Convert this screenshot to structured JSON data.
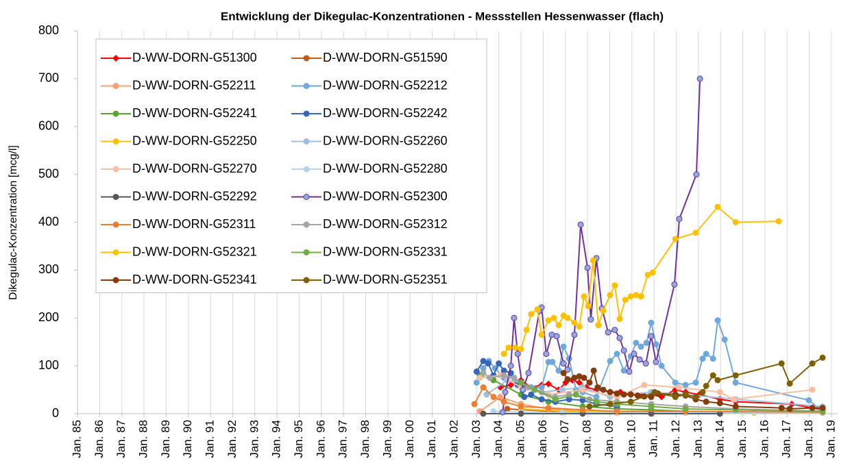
{
  "chart_data": {
    "type": "line",
    "title": "Entwicklung der Dikegulac-Konzentrationen  - Messstellen Hessenwasser (flach)",
    "y_label": "Dikegulac-Konzentration [mcg/l]",
    "xlim": [
      1985,
      2019.28
    ],
    "ylim": [
      0,
      800
    ],
    "yticks": [
      0,
      100,
      200,
      300,
      400,
      500,
      600,
      700,
      800
    ],
    "xticks": [
      {
        "value": 1985,
        "label": "Jan. 85"
      },
      {
        "value": 1986,
        "label": "Jan. 86"
      },
      {
        "value": 1987,
        "label": "Jan. 87"
      },
      {
        "value": 1988,
        "label": "Jan. 88"
      },
      {
        "value": 1989,
        "label": "Jan. 89"
      },
      {
        "value": 1990,
        "label": "Jan. 90"
      },
      {
        "value": 1991,
        "label": "Jan. 91"
      },
      {
        "value": 1992,
        "label": "Jan. 92"
      },
      {
        "value": 1993,
        "label": "Jan. 93"
      },
      {
        "value": 1994,
        "label": "Jan. 94"
      },
      {
        "value": 1995,
        "label": "Jan. 95"
      },
      {
        "value": 1996,
        "label": "Jan. 96"
      },
      {
        "value": 1997,
        "label": "Jan. 97"
      },
      {
        "value": 1998,
        "label": "Jan. 98"
      },
      {
        "value": 1999,
        "label": "Jan. 99"
      },
      {
        "value": 2000,
        "label": "Jan. 00"
      },
      {
        "value": 2001,
        "label": "Jan. 01"
      },
      {
        "value": 2002,
        "label": "Jan. 02"
      },
      {
        "value": 2003,
        "label": "Jan. 03"
      },
      {
        "value": 2004,
        "label": "Jan. 04"
      },
      {
        "value": 2005,
        "label": "Jan. 05"
      },
      {
        "value": 2006,
        "label": "Jan. 06"
      },
      {
        "value": 2007,
        "label": "Jan. 07"
      },
      {
        "value": 2008,
        "label": "Jan. 08"
      },
      {
        "value": 2009,
        "label": "Jan. 09"
      },
      {
        "value": 2010,
        "label": "Jan. 10"
      },
      {
        "value": 2011,
        "label": "Jan. 11"
      },
      {
        "value": 2012,
        "label": "Jan. 12"
      },
      {
        "value": 2013,
        "label": "Jan. 13"
      },
      {
        "value": 2014,
        "label": "Jan. 14"
      },
      {
        "value": 2015,
        "label": "Jan. 15"
      },
      {
        "value": 2016,
        "label": "Jan. 16"
      },
      {
        "value": 2017,
        "label": "Jan. 17"
      },
      {
        "value": 2018,
        "label": "Jan. 18"
      },
      {
        "value": 2019,
        "label": "Jan. 19"
      }
    ],
    "grid": true,
    "legend": "upper left",
    "series": [
      {
        "name": "D-WW-DORN-G51300",
        "color": "#ff0000",
        "marker": "diamond",
        "x": [
          2004.07,
          2004.54,
          2005.0,
          2005.46,
          2005.93,
          2006.24,
          2006.7,
          2007.01,
          2007.32,
          2007.63,
          2007.94,
          2008.4,
          2009.02,
          2009.48,
          2009.95,
          2010.41,
          2010.87,
          2011.34,
          2011.96,
          2012.42,
          2013.04,
          2013.97,
          2014.68,
          2017.21,
          2018.6
        ],
        "values": [
          55,
          60,
          70,
          55,
          60,
          62,
          50,
          65,
          70,
          65,
          55,
          50,
          45,
          45,
          42,
          38,
          40,
          35,
          50,
          45,
          40,
          30,
          25,
          20,
          8
        ]
      },
      {
        "name": "D-WW-DORN-G51590",
        "color": "#c55a11",
        "x": [
          2004.38,
          2006.24,
          2009.33,
          2012.42
        ],
        "values": [
          10,
          5,
          3,
          2
        ]
      },
      {
        "name": "D-WW-DORN-G52211",
        "color": "#f4a173",
        "x": [
          2003.15,
          2004.07,
          2005.0,
          2006.24,
          2007.78
        ],
        "values": [
          5,
          35,
          20,
          10,
          5
        ]
      },
      {
        "name": "D-WW-DORN-G52212",
        "color": "#6fa8dc",
        "x": [
          2003.0,
          2003.3,
          2003.55,
          2003.83,
          2004.23,
          2004.54,
          2005.0,
          2005.46,
          2005.93,
          2006.24,
          2006.42,
          2006.7,
          2006.92,
          2007.17,
          2007.48,
          2007.78,
          2008.4,
          2009.02,
          2009.33,
          2009.64,
          2009.95,
          2010.19,
          2010.41,
          2010.66,
          2010.87,
          2011.09,
          2011.34,
          2011.96,
          2012.42,
          2012.88,
          2013.19,
          2013.35,
          2013.66,
          2013.87,
          2014.18,
          2014.68,
          2017.98,
          2018.6
        ],
        "values": [
          65,
          95,
          110,
          95,
          75,
          80,
          60,
          55,
          55,
          108,
          108,
          90,
          140,
          115,
          50,
          45,
          35,
          110,
          125,
          90,
          120,
          148,
          140,
          148,
          190,
          145,
          100,
          65,
          60,
          65,
          115,
          125,
          115,
          195,
          155,
          65,
          28,
          5
        ]
      },
      {
        "name": "D-WW-DORN-G52241",
        "color": "#5aa532",
        "x": [
          2003.15,
          2003.76,
          2005.0,
          2006.24,
          2007.78,
          2009.33,
          2010.87,
          2012.42
        ],
        "values": [
          80,
          70,
          40,
          25,
          15,
          10,
          8,
          5
        ]
      },
      {
        "name": "D-WW-DORN-G52242",
        "color": "#3566b8",
        "x": [
          2003.0,
          2003.3,
          2003.52,
          2003.76,
          2004.0,
          2004.23,
          2004.54,
          2004.85,
          2005.15,
          2005.46,
          2005.93,
          2006.55,
          2007.17,
          2007.78,
          2008.4,
          2009.33
        ],
        "values": [
          88,
          110,
          105,
          80,
          105,
          90,
          85,
          60,
          35,
          40,
          30,
          25,
          30,
          28,
          20,
          15
        ]
      },
      {
        "name": "D-WW-DORN-G52250",
        "color": "#ffc000",
        "x": [
          2005.0,
          2006.85,
          2009.33,
          2012.42,
          2015.51,
          2018.6
        ],
        "values": [
          10,
          5,
          3,
          2,
          2,
          3
        ]
      },
      {
        "name": "D-WW-DORN-G52260",
        "color": "#9dbfe3",
        "x": [
          2003.45,
          2004.38,
          2005.0,
          2005.93,
          2006.85,
          2007.78,
          2009.02,
          2010.87,
          2012.42,
          2014.68,
          2018.6
        ],
        "values": [
          40,
          70,
          65,
          45,
          50,
          55,
          35,
          45,
          40,
          30,
          15
        ]
      },
      {
        "name": "D-WW-DORN-G52270",
        "color": "#f8c0a0",
        "x": [
          2003.15,
          2004.07,
          2005.0,
          2006.24,
          2007.78,
          2009.33,
          2010.56,
          2012.11,
          2013.97,
          2014.58,
          2018.14
        ],
        "values": [
          75,
          80,
          55,
          40,
          50,
          35,
          60,
          55,
          45,
          30,
          50
        ]
      },
      {
        "name": "D-WW-DORN-G52280",
        "color": "#b4d4f0",
        "x": [
          2003.76,
          2005.0,
          2006.85,
          2009.33,
          2012.42,
          2015.51,
          2018.6
        ],
        "values": [
          5,
          3,
          2,
          1,
          2,
          3,
          2
        ]
      },
      {
        "name": "D-WW-DORN-G52292",
        "color": "#595959",
        "x": [
          2003.3,
          2005.0,
          2007.78,
          2010.87,
          2013.97
        ],
        "values": [
          0,
          0,
          0,
          0,
          0
        ]
      },
      {
        "name": "D-WW-DORN-G52300",
        "color": "#7030a0",
        "marker_fill": "#8faadc",
        "x": [
          2004.17,
          2004.29,
          2004.54,
          2004.69,
          2004.85,
          2005.09,
          2005.34,
          2005.83,
          2005.93,
          2006.14,
          2006.39,
          2006.61,
          2006.92,
          2007.1,
          2007.41,
          2007.69,
          2008.0,
          2008.15,
          2008.4,
          2008.65,
          2008.93,
          2009.23,
          2009.45,
          2009.64,
          2009.88,
          2010.1,
          2010.35,
          2010.63,
          2010.87,
          2011.09,
          2011.92,
          2012.14,
          2012.91,
          2013.07
        ],
        "values": [
          3,
          45,
          100,
          200,
          125,
          50,
          85,
          215,
          222,
          125,
          165,
          162,
          105,
          92,
          165,
          395,
          305,
          197,
          325,
          220,
          170,
          175,
          158,
          132,
          88,
          125,
          113,
          105,
          162,
          108,
          270,
          407,
          500,
          700
        ]
      },
      {
        "name": "D-WW-DORN-G52311",
        "color": "#ed7d31",
        "x": [
          2002.9,
          2003.3,
          2003.76,
          2004.23,
          2005.0,
          2006.24,
          2007.78,
          2009.33,
          2012.42,
          2018.6
        ],
        "values": [
          20,
          55,
          35,
          25,
          15,
          12,
          8,
          5,
          5,
          3
        ]
      },
      {
        "name": "D-WW-DORN-G52312",
        "color": "#a5a5a5",
        "x": [
          2003.3,
          2003.6,
          2004.23,
          2004.69,
          2005.31,
          2005.93,
          2006.55,
          2007.17,
          2008.09,
          2009.33,
          2010.87,
          2012.42,
          2014.68,
          2018.6
        ],
        "values": [
          85,
          75,
          80,
          75,
          55,
          45,
          35,
          40,
          30,
          25,
          20,
          15,
          10,
          5
        ]
      },
      {
        "name": "D-WW-DORN-G52321",
        "color": "#ffc000",
        "x": [
          2004.23,
          2004.44,
          2004.75,
          2005.0,
          2005.25,
          2005.46,
          2005.74,
          2005.93,
          2006.24,
          2006.48,
          2006.7,
          2006.92,
          2007.1,
          2007.41,
          2007.63,
          2007.84,
          2008.03,
          2008.25,
          2008.49,
          2008.71,
          2009.02,
          2009.23,
          2009.45,
          2009.7,
          2009.95,
          2010.19,
          2010.41,
          2010.72,
          2010.94,
          2011.96,
          2012.88,
          2013.87,
          2014.68,
          2016.62
        ],
        "values": [
          125,
          138,
          138,
          135,
          175,
          208,
          218,
          165,
          195,
          200,
          185,
          205,
          200,
          190,
          182,
          245,
          225,
          320,
          185,
          215,
          248,
          268,
          198,
          238,
          245,
          248,
          245,
          290,
          295,
          365,
          378,
          432,
          400,
          402
        ]
      },
      {
        "name": "D-WW-DORN-G52331",
        "color": "#70ad47",
        "x": [
          2005.0,
          2005.62,
          2006.55,
          2007.48,
          2008.4,
          2009.33,
          2010.87,
          2012.42,
          2014.68,
          2018.6
        ],
        "values": [
          65,
          50,
          30,
          40,
          25,
          20,
          15,
          10,
          8,
          5
        ]
      },
      {
        "name": "D-WW-DORN-G52341",
        "color": "#843c0c",
        "x": [
          2006.92,
          2007.1,
          2007.41,
          2007.63,
          2007.84,
          2008.09,
          2008.28,
          2008.46,
          2008.71,
          2009.02,
          2009.33,
          2009.64,
          2009.95,
          2010.26,
          2010.56,
          2010.87,
          2011.18,
          2011.96,
          2012.42,
          2012.88,
          2013.35,
          2013.97,
          2014.68,
          2016.75,
          2017.12,
          2018.14,
          2018.6
        ],
        "values": [
          85,
          72,
          75,
          78,
          75,
          65,
          90,
          55,
          50,
          45,
          42,
          40,
          40,
          38,
          36,
          35,
          42,
          40,
          38,
          30,
          25,
          22,
          15,
          12,
          10,
          12,
          12
        ]
      },
      {
        "name": "D-WW-DORN-G52351",
        "color": "#7f6000",
        "x": [
          2008.09,
          2009.02,
          2009.95,
          2011.03,
          2011.96,
          2012.42,
          2012.88,
          2013.19,
          2013.35,
          2013.66,
          2013.87,
          2014.68,
          2016.75,
          2017.12,
          2018.14,
          2018.6
        ],
        "values": [
          15,
          20,
          25,
          45,
          35,
          40,
          35,
          45,
          58,
          80,
          70,
          80,
          105,
          63,
          105,
          117
        ]
      }
    ]
  }
}
